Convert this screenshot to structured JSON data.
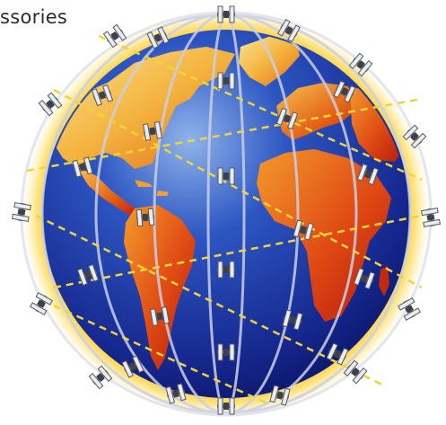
{
  "caption": {
    "text": "ssories"
  },
  "illustration": {
    "subject": "globe-with-satellite-constellation",
    "colors": {
      "ocean_dark": "#0f1d7a",
      "ocean_mid": "#2648b8",
      "ocean_light": "#8fb3ea",
      "land_light": "#f7d66b",
      "land_mid": "#f08b22",
      "land_dark": "#c8200f",
      "glow": "#f5c21c",
      "orbit_line": "#c9cfe6",
      "footprint_line": "#f0d53a",
      "satellite_body": "#6b6f78",
      "satellite_panel": "#e9ecef"
    }
  }
}
